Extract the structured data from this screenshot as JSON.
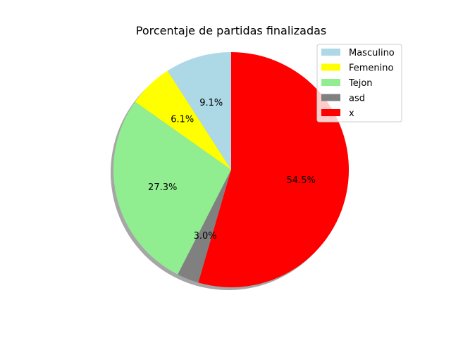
{
  "chart_data": {
    "type": "pie",
    "title": "Porcentaje de partidas finalizadas",
    "slices": [
      {
        "label": "Masculino",
        "value": 9.1,
        "percent_label": "9.1%",
        "color": "#add8e6"
      },
      {
        "label": "Femenino",
        "value": 6.1,
        "percent_label": "6.1%",
        "color": "#ffff00"
      },
      {
        "label": "Tejon",
        "value": 27.3,
        "percent_label": "27.3%",
        "color": "#90ee90"
      },
      {
        "label": "asd",
        "value": 3.0,
        "percent_label": "3.0%",
        "color": "#808080"
      },
      {
        "label": "x",
        "value": 54.5,
        "percent_label": "54.5%",
        "color": "#ff0000"
      }
    ],
    "start_angle_deg": 90,
    "direction": "counterclockwise",
    "shadow": true,
    "legend_position": "top-right"
  }
}
